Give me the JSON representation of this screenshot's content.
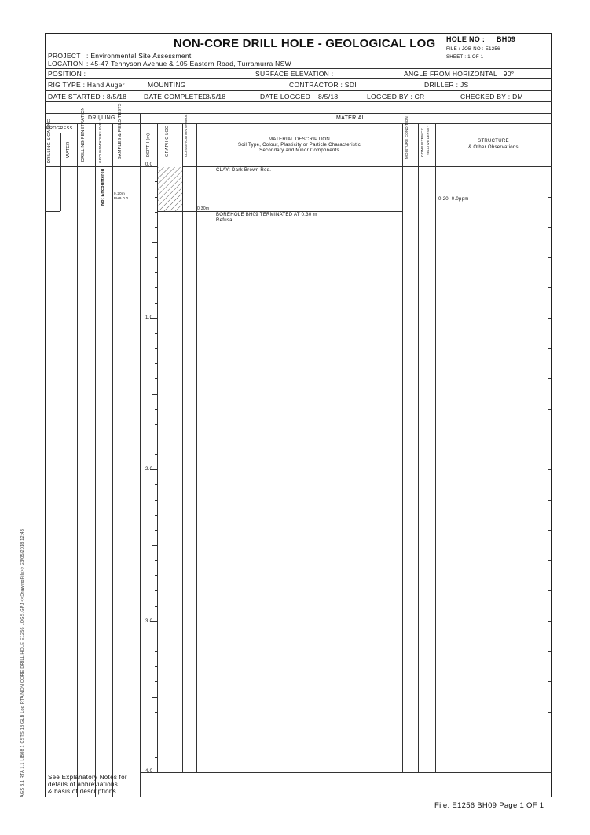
{
  "header": {
    "title": "NON-CORE DRILL HOLE - GEOLOGICAL LOG",
    "hole_no_label": "HOLE NO :",
    "hole_no": "BH09",
    "file_job_no": "FILE / JOB NO : E1256",
    "sheet": "SHEET : 1 OF 1",
    "project_label": "PROJECT",
    "project_value": ": Environmental Site Assessment",
    "location_label": "LOCATION",
    "location_value": ": 45-47 Tennyson Avenue & 105 Eastern Road, Turramurra NSW"
  },
  "info": {
    "position": "POSITION :",
    "surface_elevation": "SURFACE ELEVATION :",
    "angle": "ANGLE FROM HORIZONTAL : 90°",
    "rig_type": "RIG TYPE : Hand Auger",
    "mounting": "MOUNTING :",
    "contractor": "CONTRACTOR : SDI",
    "driller": "DRILLER : JS",
    "date_started": "DATE STARTED : 8/5/18",
    "date_completed_label": "DATE COMPLETED",
    "date_completed": "8/5/18",
    "date_logged_label": "DATE LOGGED",
    "date_logged": "8/5/18",
    "logged_by": "LOGGED BY : CR",
    "checked_by": "CHECKED BY : DM"
  },
  "columns": {
    "drilling": "DRILLING",
    "material": "MATERIAL",
    "progress": "PROGRESS",
    "drilling_casing": "DRILLING & CASING",
    "water": "WATER",
    "drilling_penetration": "DRILLING PENETRATION",
    "groundwater_levels": "GROUNDWATER LEVELS",
    "samples_field_tests": "SAMPLES & FIELD TESTS",
    "depth": "DEPTH (m)",
    "graphic_log": "GRAPHIC LOG",
    "classification_symbol": "CLASSIFICATION SYMBOL",
    "material_description_1": "MATERIAL DESCRIPTION",
    "material_description_2": "Soil Type, Colour, Plasticity or Particle Characteristic",
    "material_description_3": "Secondary and Minor Components",
    "moisture_condition": "MOISTURE CONDITION",
    "consistency": "CONSISTENCY",
    "relative_density": "RELATIVE DENSITY",
    "structure": "STRUCTURE",
    "other_observations": "& Other Observations"
  },
  "log": {
    "groundwater": "Not Encountered",
    "sample_1": "0.20m",
    "sample_2": "BH9 0.0",
    "description_1": "CLAY: Dark Brown Red.",
    "layer_base": "0.30m",
    "termination": "BOREHOLE BH09 TERMINATED AT 0.30 m",
    "termination_reason": "Refusal",
    "structure_note": "0.20: 0.0ppm",
    "depth_labels": [
      "0.0",
      "1.0",
      "2.0",
      "3.0",
      "4.0"
    ]
  },
  "footer": {
    "notes_1": "See Explanatory Notes for",
    "notes_2": "details of abbreviations",
    "notes_3": "& basis of descriptions.",
    "file_ref": "File: E1256 BH09 Page 1 OF 1",
    "side_text": "AGS 3.1 RTA 1.1 LIB08 1 CSTS 18 GLB Log RTA NON CORE DRILL HOLE E1256 LOGS.GPJ <<DrawingFile>> 23/05/2018 12:43"
  }
}
